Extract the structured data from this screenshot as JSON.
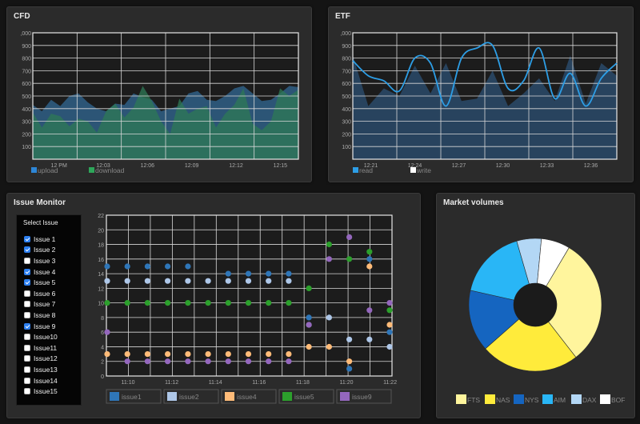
{
  "panels": {
    "cfd": {
      "title": "CFD"
    },
    "etf": {
      "title": "ETF"
    },
    "issues": {
      "title": "Issue Monitor"
    },
    "market": {
      "title": "Market volumes"
    }
  },
  "issue_selector": {
    "title": "Select Issue",
    "items": [
      {
        "label": "Issue 1",
        "checked": true
      },
      {
        "label": "Issue 2",
        "checked": true
      },
      {
        "label": "Issue 3",
        "checked": false
      },
      {
        "label": "Issue 4",
        "checked": true
      },
      {
        "label": "Issue 5",
        "checked": true
      },
      {
        "label": "Issue 6",
        "checked": false
      },
      {
        "label": "Issue 7",
        "checked": false
      },
      {
        "label": "Issue 8",
        "checked": false
      },
      {
        "label": "Issue 9",
        "checked": true
      },
      {
        "label": "Issue10",
        "checked": false
      },
      {
        "label": "Issue11",
        "checked": false
      },
      {
        "label": "Issue12",
        "checked": false
      },
      {
        "label": "Issue13",
        "checked": false
      },
      {
        "label": "Issue14",
        "checked": false
      },
      {
        "label": "Issue15",
        "checked": false
      }
    ]
  },
  "chart_data": [
    {
      "id": "cfd",
      "type": "area",
      "ylim": [
        0,
        1000
      ],
      "yticks": [
        "100",
        "200",
        "300",
        "400",
        "500",
        "600",
        "700",
        "800",
        "900",
        ",000"
      ],
      "xticks": [
        "12 PM",
        "12:03",
        "12:06",
        "12:09",
        "12:12",
        "12:15"
      ],
      "grid": true,
      "legend_position": "bottom-left",
      "series": [
        {
          "name": "upload",
          "color": "#2f5f86",
          "values": [
            430,
            380,
            470,
            420,
            500,
            520,
            450,
            400,
            380,
            440,
            430,
            520,
            490,
            470,
            380,
            400,
            420,
            520,
            540,
            470,
            460,
            500,
            560,
            580,
            520,
            460,
            470,
            520,
            580,
            570
          ]
        },
        {
          "name": "download",
          "color": "#2e7a55",
          "values": [
            370,
            250,
            360,
            340,
            260,
            320,
            300,
            210,
            380,
            440,
            330,
            410,
            580,
            460,
            300,
            200,
            480,
            360,
            400,
            420,
            250,
            360,
            430,
            560,
            280,
            230,
            300,
            560,
            500,
            550
          ]
        }
      ]
    },
    {
      "id": "etf",
      "type": "line",
      "ylim": [
        0,
        1000
      ],
      "yticks": [
        "100",
        "200",
        "300",
        "400",
        "500",
        "600",
        "700",
        "800",
        "900",
        ",000"
      ],
      "xticks": [
        "12:21",
        "12:24",
        "12:27",
        "12:30",
        "12:33",
        "12:36"
      ],
      "grid": true,
      "legend_position": "bottom-left",
      "series": [
        {
          "name": "read",
          "color": "#2d9ee6",
          "values": [
            780,
            660,
            620,
            540,
            800,
            760,
            420,
            800,
            880,
            900,
            560,
            620,
            880,
            480,
            680,
            420,
            640,
            760
          ]
        },
        {
          "name": "write",
          "color": "#ffffff",
          "values": [
            820,
            420,
            560,
            500,
            740,
            520,
            760,
            460,
            480,
            700,
            420,
            520,
            640,
            460,
            820,
            440,
            760,
            660
          ]
        }
      ]
    },
    {
      "id": "issue-monitor",
      "type": "scatter",
      "ylim": [
        0,
        22
      ],
      "yticks": [
        "0",
        "2",
        "4",
        "6",
        "8",
        "10",
        "12",
        "14",
        "16",
        "18",
        "20",
        "22"
      ],
      "xticks": [
        "11:10",
        "11:12",
        "11:14",
        "11:16",
        "11:18",
        "11:20",
        "11:22"
      ],
      "grid": true,
      "legend_position": "bottom",
      "series": [
        {
          "name": "issue1",
          "color": "#2f76b8",
          "values": [
            15,
            15,
            15,
            15,
            15,
            null,
            14,
            14,
            14,
            14,
            8,
            null,
            1,
            16,
            6
          ]
        },
        {
          "name": "issue2",
          "color": "#aec7e8",
          "values": [
            13,
            13,
            13,
            13,
            13,
            13,
            13,
            13,
            13,
            13,
            7,
            8,
            5,
            5,
            4
          ]
        },
        {
          "name": "issue4",
          "color": "#ffbb78",
          "values": [
            3,
            3,
            3,
            3,
            3,
            3,
            3,
            3,
            3,
            3,
            4,
            4,
            2,
            15,
            7
          ]
        },
        {
          "name": "issue5",
          "color": "#2ca02c",
          "values": [
            10,
            10,
            10,
            10,
            10,
            10,
            10,
            10,
            10,
            10,
            12,
            18,
            16,
            17,
            9
          ]
        },
        {
          "name": "issue9",
          "color": "#9467bd",
          "values": [
            6,
            2,
            2,
            2,
            2,
            2,
            2,
            2,
            2,
            2,
            7,
            16,
            19,
            9,
            10
          ]
        }
      ]
    },
    {
      "id": "market-volumes",
      "type": "pie",
      "legend_position": "bottom",
      "slices": [
        {
          "label": "FTS",
          "value": 31,
          "color": "#fff59d"
        },
        {
          "label": "NAS",
          "value": 24,
          "color": "#ffeb3b"
        },
        {
          "label": "NYS",
          "value": 15,
          "color": "#1565c0"
        },
        {
          "label": "AIM",
          "value": 17,
          "color": "#29b6f6"
        },
        {
          "label": "DAX",
          "value": 6,
          "color": "#b3d7f5"
        },
        {
          "label": "BOF",
          "value": 7,
          "color": "#ffffff"
        }
      ]
    }
  ]
}
